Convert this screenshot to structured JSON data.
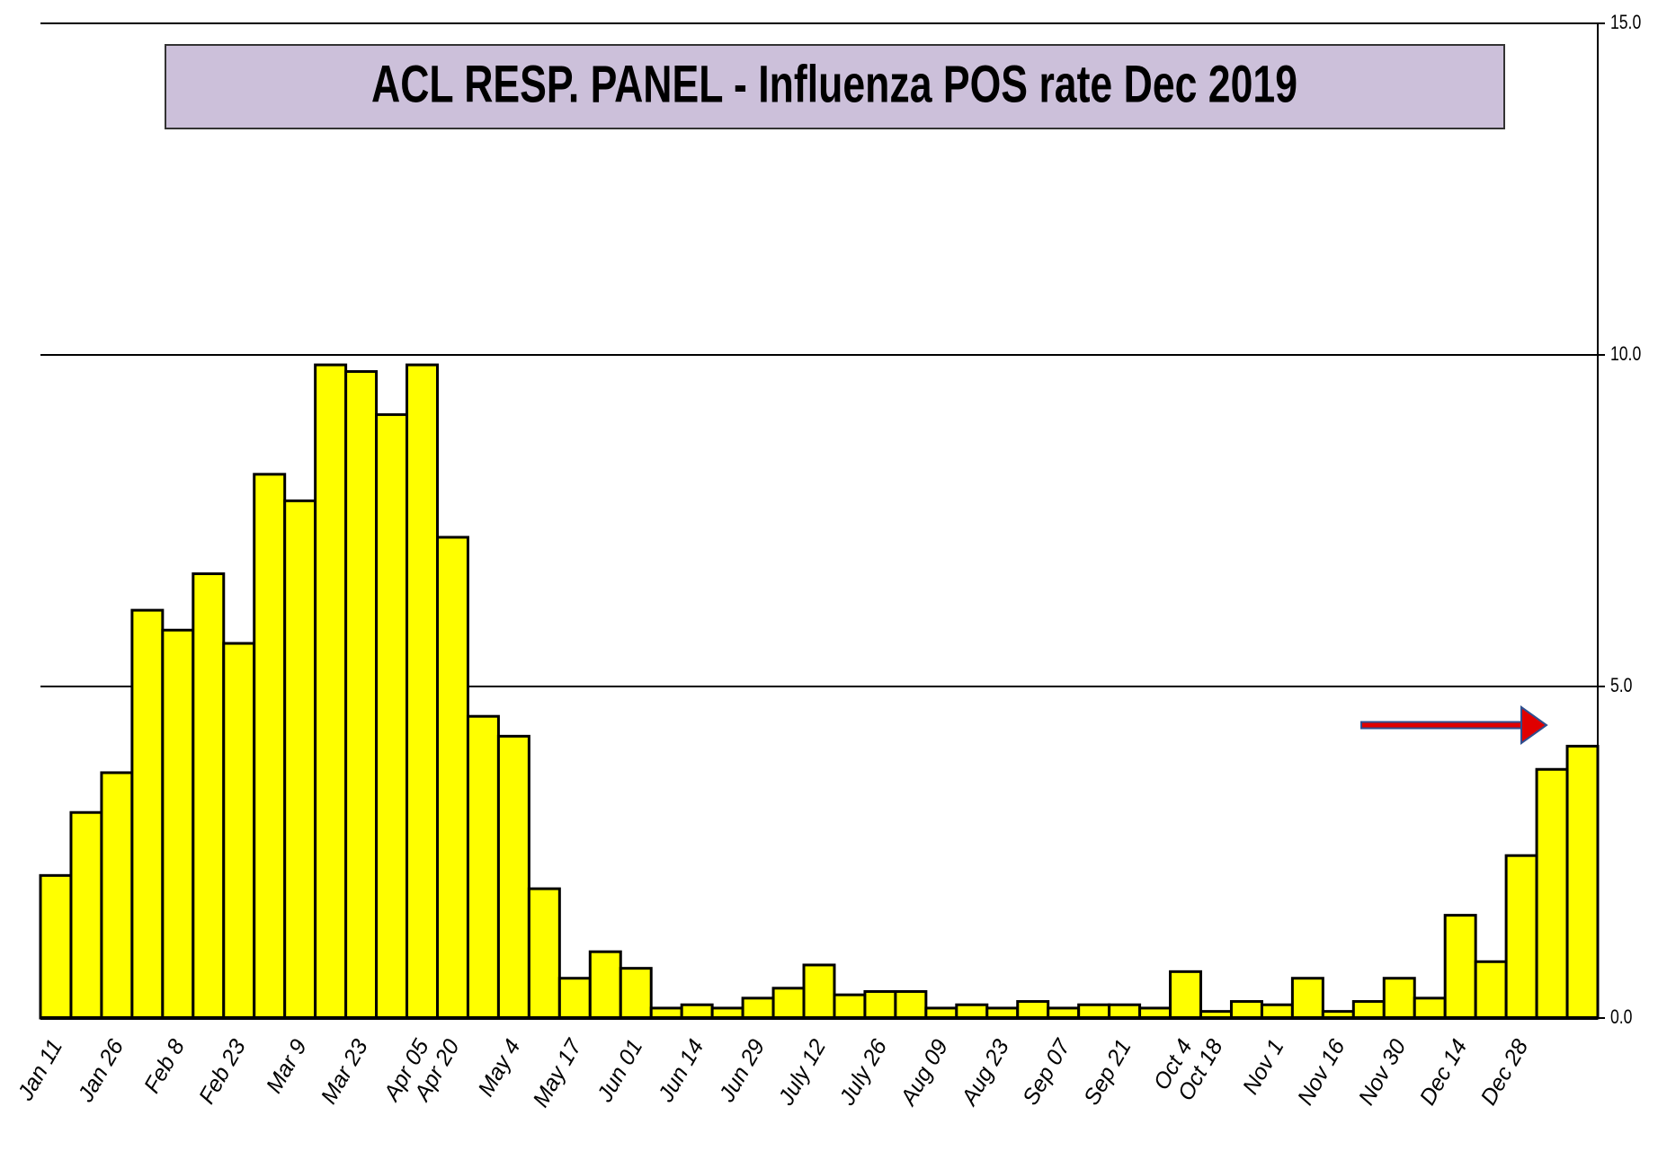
{
  "chart_data": {
    "type": "bar",
    "title": "ACL RESP. PANEL -  Influenza POS rate  Dec 2019",
    "categories": [
      "Jan 11",
      null,
      "Jan 26",
      null,
      "Feb 8",
      null,
      "Feb 23",
      null,
      "Mar 9",
      null,
      "Mar 23",
      null,
      "Apr 05",
      "Apr 20",
      null,
      "May 4",
      null,
      "May 17",
      null,
      "Jun 01",
      null,
      "Jun 14",
      null,
      "Jun 29",
      null,
      "July 12",
      null,
      "July 26",
      null,
      "Aug 09",
      null,
      "Aug 23",
      null,
      "Sep 07",
      null,
      "Sep 21",
      null,
      "Oct 4",
      "Oct 18",
      null,
      "Nov 1",
      null,
      "Nov 16",
      null,
      "Nov 30",
      null,
      "Dec 14",
      null,
      "Dec 28",
      null,
      null
    ],
    "values": [
      2.15,
      3.1,
      3.7,
      6.15,
      5.85,
      6.7,
      5.65,
      8.2,
      7.8,
      9.85,
      9.75,
      9.1,
      9.85,
      7.25,
      4.55,
      4.25,
      1.95,
      0.6,
      1.0,
      0.75,
      0.15,
      0.2,
      0.15,
      0.3,
      0.45,
      0.8,
      0.35,
      0.4,
      0.4,
      0.15,
      0.2,
      0.15,
      0.25,
      0.15,
      0.2,
      0.2,
      0.15,
      0.7,
      0.1,
      0.25,
      0.2,
      0.6,
      0.1,
      0.25,
      0.6,
      0.3,
      1.55,
      0.85,
      2.45,
      3.75,
      4.1
    ],
    "color": "#ffff00",
    "ylim": [
      0,
      15
    ],
    "yticks": [
      {
        "value": 0,
        "label": "0.0"
      },
      {
        "value": 5,
        "label": "5.0"
      },
      {
        "value": 10,
        "label": "10.0"
      },
      {
        "value": 15,
        "label": "15.0"
      }
    ],
    "grid": true
  }
}
